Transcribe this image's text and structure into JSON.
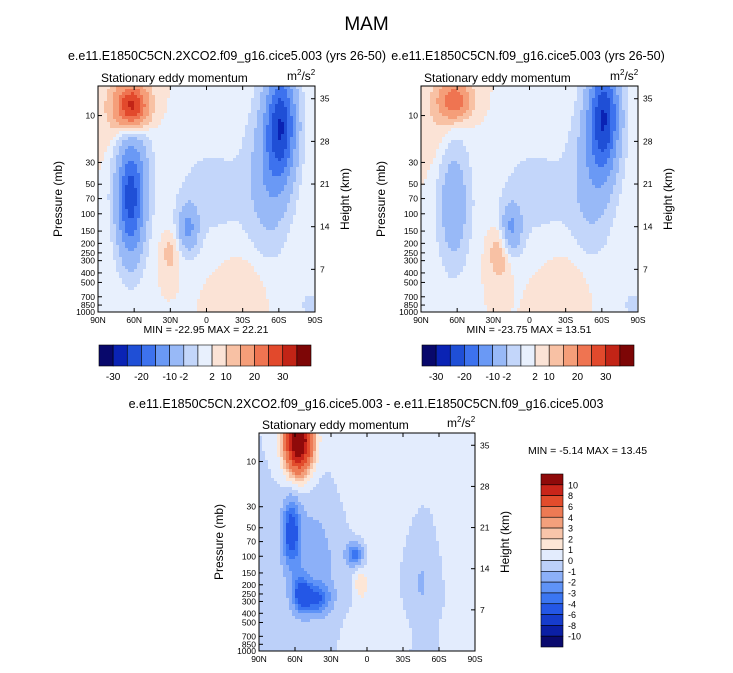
{
  "page": {
    "title": "MAM"
  },
  "colors": {
    "panel_scale": [
      "#08086b",
      "#0a23b4",
      "#1f4fd6",
      "#3d72ee",
      "#6a99f5",
      "#98b9f7",
      "#c3d6fa",
      "#e8f0fd",
      "#fbe3d6",
      "#f8c1a4",
      "#f59e79",
      "#ef7451",
      "#e2492c",
      "#c22416",
      "#7d0606"
    ],
    "diff_scale": [
      "#0a0a6e",
      "#0b1fa5",
      "#163ccc",
      "#2457e6",
      "#3b76f2",
      "#5f93f7",
      "#8cb0f8",
      "#bcd0f9",
      "#e3ecfd",
      "#fde6d6",
      "#f8c5aa",
      "#f3a07c",
      "#ed7a54",
      "#e24c2c",
      "#c9251a",
      "#8f0a0a"
    ]
  },
  "chart_data": [
    {
      "id": "panel_left",
      "type": "heatmap",
      "subtitle": "e.e11.E1850C5CN.2XCO2.f09_g16.cice5.003 (yrs 26-50)",
      "field": "Stationary eddy momentum",
      "units": "m²/s²",
      "units_base": "m",
      "units_exp1": "2",
      "units_sep": "/s",
      "units_exp2": "2",
      "x_ticks": [
        "90N",
        "60N",
        "30N",
        "0",
        "30S",
        "60S",
        "90S"
      ],
      "x_values": [
        90,
        60,
        30,
        0,
        -30,
        -60,
        -90
      ],
      "y_label": "Pressure (mb)",
      "y_ticks": [
        "10",
        "30",
        "50",
        "70",
        "100",
        "150",
        "200",
        "250",
        "300",
        "400",
        "500",
        "700",
        "850",
        "1000"
      ],
      "y_values": [
        10,
        30,
        50,
        70,
        100,
        150,
        200,
        250,
        300,
        400,
        500,
        700,
        850,
        1000
      ],
      "y2_label": "Height (km)",
      "y2_ticks": [
        "35",
        "28",
        "21",
        "14",
        "7"
      ],
      "y2_values": [
        35,
        28,
        21,
        14,
        7
      ],
      "xlim": [
        90,
        -90
      ],
      "ylim": [
        1000,
        5
      ],
      "min_max_text": "MIN = -22.95   MAX = 22.21",
      "min": -22.95,
      "max": 22.21,
      "features": [
        {
          "lat": 62,
          "p": 8,
          "amp": 22,
          "sx": 9,
          "sy": 0.35
        },
        {
          "lat": 63,
          "p": 90,
          "amp": -18,
          "sx": 8,
          "sy": 0.9
        },
        {
          "lat": 62,
          "p": 35,
          "amp": -8,
          "sx": 10,
          "sy": 0.8
        },
        {
          "lat": 15,
          "p": 140,
          "amp": -10,
          "sx": 6,
          "sy": 0.4
        },
        {
          "lat": 30,
          "p": 250,
          "amp": 3.5,
          "sx": 5,
          "sy": 0.35
        },
        {
          "lat": -62,
          "p": 12,
          "amp": -22,
          "sx": 9,
          "sy": 0.9
        },
        {
          "lat": -52,
          "p": 40,
          "amp": -8,
          "sx": 12,
          "sy": 1.2
        },
        {
          "lat": -5,
          "p": 60,
          "amp": -3,
          "sx": 25,
          "sy": 0.9
        },
        {
          "lat": -85,
          "p": 850,
          "amp": -4,
          "sx": 4,
          "sy": 0.2
        },
        {
          "lat": 75,
          "p": 12,
          "amp": 1.8,
          "sx": 10,
          "sy": 0.8
        },
        {
          "lat": -30,
          "p": 500,
          "amp": 1.5,
          "sx": 15,
          "sy": 0.5
        }
      ]
    },
    {
      "id": "panel_right",
      "type": "heatmap",
      "subtitle": "e.e11.E1850C5CN.f09_g16.cice5.003 (yrs 26-50)",
      "field": "Stationary eddy momentum",
      "units": "m²/s²",
      "units_base": "m",
      "units_exp1": "2",
      "units_sep": "/s",
      "units_exp2": "2",
      "x_ticks": [
        "90N",
        "60N",
        "30N",
        "0",
        "30S",
        "60S",
        "90S"
      ],
      "x_values": [
        90,
        60,
        30,
        0,
        -30,
        -60,
        -90
      ],
      "y_label": "Pressure (mb)",
      "y_ticks": [
        "10",
        "30",
        "50",
        "70",
        "100",
        "150",
        "200",
        "250",
        "300",
        "400",
        "500",
        "700",
        "850",
        "1000"
      ],
      "y_values": [
        10,
        30,
        50,
        70,
        100,
        150,
        200,
        250,
        300,
        400,
        500,
        700,
        850,
        1000
      ],
      "y2_label": "Height (km)",
      "y2_ticks": [
        "35",
        "28",
        "21",
        "14",
        "7"
      ],
      "y2_values": [
        35,
        28,
        21,
        14,
        7
      ],
      "xlim": [
        90,
        -90
      ],
      "ylim": [
        1000,
        5
      ],
      "min_max_text": "MIN = -23.75   MAX = 13.51",
      "min": -23.75,
      "max": 13.51,
      "features": [
        {
          "lat": 62,
          "p": 7,
          "amp": 13.5,
          "sx": 9,
          "sy": 0.3
        },
        {
          "lat": 63,
          "p": 80,
          "amp": -9,
          "sx": 9,
          "sy": 1.0
        },
        {
          "lat": 15,
          "p": 140,
          "amp": -10,
          "sx": 6,
          "sy": 0.4
        },
        {
          "lat": 25,
          "p": 250,
          "amp": 4.5,
          "sx": 6,
          "sy": 0.45
        },
        {
          "lat": -62,
          "p": 10,
          "amp": -23,
          "sx": 9,
          "sy": 0.9
        },
        {
          "lat": -52,
          "p": 40,
          "amp": -7,
          "sx": 12,
          "sy": 1.2
        },
        {
          "lat": -5,
          "p": 60,
          "amp": -3,
          "sx": 25,
          "sy": 0.9
        },
        {
          "lat": -85,
          "p": 850,
          "amp": -4,
          "sx": 4,
          "sy": 0.2
        },
        {
          "lat": 75,
          "p": 12,
          "amp": 1.8,
          "sx": 10,
          "sy": 0.8
        },
        {
          "lat": -30,
          "p": 500,
          "amp": 1.5,
          "sx": 15,
          "sy": 0.5
        }
      ]
    },
    {
      "id": "panel_diff",
      "type": "heatmap",
      "subtitle": "e.e11.E1850C5CN.2XCO2.f09_g16.cice5.003 - e.e11.E1850C5CN.f09_g16.cice5.003",
      "field": "Stationary eddy momentum",
      "units": "m²/s²",
      "units_base": "m",
      "units_exp1": "2",
      "units_sep": "/s",
      "units_exp2": "2",
      "x_ticks": [
        "90N",
        "60N",
        "30N",
        "0",
        "30S",
        "60S",
        "90S"
      ],
      "x_values": [
        90,
        60,
        30,
        0,
        -30,
        -60,
        -90
      ],
      "y_label": "Pressure (mb)",
      "y_ticks": [
        "10",
        "30",
        "50",
        "70",
        "100",
        "150",
        "200",
        "250",
        "300",
        "400",
        "500",
        "700",
        "850",
        "1000"
      ],
      "y_values": [
        10,
        30,
        50,
        70,
        100,
        150,
        200,
        250,
        300,
        400,
        500,
        700,
        850,
        1000
      ],
      "y2_label": "Height (km)",
      "y2_ticks": [
        "35",
        "28",
        "21",
        "14",
        "7"
      ],
      "y2_values": [
        35,
        28,
        21,
        14,
        7
      ],
      "xlim": [
        90,
        -90
      ],
      "ylim": [
        1000,
        5
      ],
      "min_max_text": "MIN = -5.14   MAX = 13.45",
      "min": -5.14,
      "max": 13.45,
      "features": [
        {
          "lat": 57,
          "p": 6,
          "amp": 13,
          "sx": 8,
          "sy": 0.55
        },
        {
          "lat": 63,
          "p": 55,
          "amp": -4.5,
          "sx": 5,
          "sy": 0.55
        },
        {
          "lat": 55,
          "p": 250,
          "amp": -4,
          "sx": 5,
          "sy": 0.3
        },
        {
          "lat": 42,
          "p": 280,
          "amp": -3.5,
          "sx": 8,
          "sy": 0.25
        },
        {
          "lat": 10,
          "p": 95,
          "amp": -3.5,
          "sx": 5,
          "sy": 0.2
        },
        {
          "lat": 5,
          "p": 200,
          "amp": 1.8,
          "sx": 4,
          "sy": 0.25
        },
        {
          "lat": 45,
          "p": 100,
          "amp": -1.5,
          "sx": 20,
          "sy": 1.2
        },
        {
          "lat": -45,
          "p": 200,
          "amp": -1.2,
          "sx": 10,
          "sy": 1.2
        },
        {
          "lat": -10,
          "p": 20,
          "amp": 0.7,
          "sx": 30,
          "sy": 1.5
        },
        {
          "lat": -75,
          "p": 30,
          "amp": 0.8,
          "sx": 10,
          "sy": 1.2
        },
        {
          "lat": -20,
          "p": 600,
          "amp": 0.6,
          "sx": 30,
          "sy": 0.5
        }
      ]
    }
  ],
  "colorbars": {
    "left": {
      "levels": [
        -30,
        -25,
        -20,
        -15,
        -10,
        -5,
        -2,
        0,
        2,
        5,
        10,
        15,
        20,
        25,
        30
      ],
      "labels": [
        "-30",
        "-20",
        "-10",
        "-2",
        "2",
        "10",
        "20",
        "30"
      ]
    },
    "right": {
      "levels": [
        -30,
        -25,
        -20,
        -15,
        -10,
        -5,
        -2,
        0,
        2,
        5,
        10,
        15,
        20,
        25,
        30
      ],
      "labels": [
        "-30",
        "-20",
        "-10",
        "-2",
        "2",
        "10",
        "20",
        "30"
      ]
    },
    "diff": {
      "levels": [
        -10,
        -8,
        -6,
        -4,
        -3,
        -2,
        -1,
        0,
        1,
        2,
        3,
        4,
        6,
        8,
        10
      ],
      "labels": [
        "10",
        "8",
        "6",
        "4",
        "3",
        "2",
        "1",
        "0",
        "-1",
        "-2",
        "-3",
        "-4",
        "-6",
        "-8",
        "-10"
      ]
    }
  }
}
